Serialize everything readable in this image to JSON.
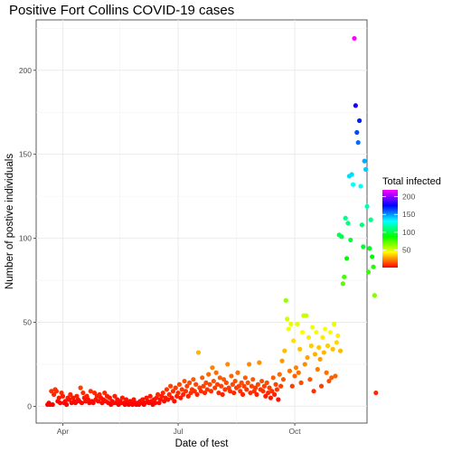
{
  "chart_data": {
    "type": "scatter",
    "title": "Positive Fort Collins COVID-19 cases",
    "xlabel": "Date of test",
    "ylabel": "Number of postive individuals",
    "x_ticks": [
      {
        "label": "Apr",
        "value": "2020-04-01"
      },
      {
        "label": "Jul",
        "value": "2020-07-01"
      },
      {
        "label": "Oct",
        "value": "2020-10-01"
      }
    ],
    "y_ticks": [
      0,
      50,
      100,
      150,
      200
    ],
    "xlim": [
      "2020-03-11",
      "2020-11-27"
    ],
    "ylim": [
      -10,
      230
    ],
    "grid": true,
    "legend": {
      "title": "Total infected",
      "position": "right",
      "ticks": [
        50,
        100,
        150,
        200
      ],
      "range": [
        1,
        219
      ],
      "colors": [
        "#ff0000",
        "#ffff00",
        "#00ff00",
        "#00ffff",
        "#0000ff",
        "#ff00ff"
      ]
    },
    "points": [
      [
        "2020-03-20",
        1
      ],
      [
        "2020-03-21",
        2
      ],
      [
        "2020-03-22",
        1
      ],
      [
        "2020-03-23",
        9
      ],
      [
        "2020-03-24",
        1
      ],
      [
        "2020-03-25",
        7
      ],
      [
        "2020-03-26",
        10
      ],
      [
        "2020-03-27",
        9
      ],
      [
        "2020-03-28",
        3
      ],
      [
        "2020-03-29",
        5
      ],
      [
        "2020-03-30",
        2
      ],
      [
        "2020-03-31",
        8
      ],
      [
        "2020-04-01",
        6
      ],
      [
        "2020-04-02",
        2
      ],
      [
        "2020-04-03",
        3
      ],
      [
        "2020-04-04",
        1
      ],
      [
        "2020-04-05",
        5
      ],
      [
        "2020-04-06",
        4
      ],
      [
        "2020-04-07",
        7
      ],
      [
        "2020-04-08",
        2
      ],
      [
        "2020-04-09",
        5
      ],
      [
        "2020-04-10",
        3
      ],
      [
        "2020-04-11",
        2
      ],
      [
        "2020-04-12",
        6
      ],
      [
        "2020-04-13",
        4
      ],
      [
        "2020-04-14",
        3
      ],
      [
        "2020-04-15",
        11
      ],
      [
        "2020-04-16",
        2
      ],
      [
        "2020-04-17",
        8
      ],
      [
        "2020-04-18",
        5
      ],
      [
        "2020-04-19",
        3
      ],
      [
        "2020-04-20",
        6
      ],
      [
        "2020-04-21",
        4
      ],
      [
        "2020-04-22",
        2
      ],
      [
        "2020-04-23",
        9
      ],
      [
        "2020-04-24",
        3
      ],
      [
        "2020-04-25",
        2
      ],
      [
        "2020-04-26",
        8
      ],
      [
        "2020-04-27",
        4
      ],
      [
        "2020-04-28",
        6
      ],
      [
        "2020-04-29",
        3
      ],
      [
        "2020-04-30",
        7
      ],
      [
        "2020-05-01",
        5
      ],
      [
        "2020-05-02",
        2
      ],
      [
        "2020-05-03",
        4
      ],
      [
        "2020-05-04",
        8
      ],
      [
        "2020-05-05",
        3
      ],
      [
        "2020-05-06",
        6
      ],
      [
        "2020-05-07",
        2
      ],
      [
        "2020-05-08",
        5
      ],
      [
        "2020-05-09",
        1
      ],
      [
        "2020-05-10",
        3
      ],
      [
        "2020-05-11",
        2
      ],
      [
        "2020-05-12",
        6
      ],
      [
        "2020-05-13",
        2
      ],
      [
        "2020-05-14",
        4
      ],
      [
        "2020-05-15",
        1
      ],
      [
        "2020-05-16",
        3
      ],
      [
        "2020-05-17",
        2
      ],
      [
        "2020-05-18",
        5
      ],
      [
        "2020-05-19",
        2
      ],
      [
        "2020-05-20",
        1
      ],
      [
        "2020-05-21",
        4
      ],
      [
        "2020-05-22",
        2
      ],
      [
        "2020-05-23",
        1
      ],
      [
        "2020-05-24",
        3
      ],
      [
        "2020-05-25",
        2
      ],
      [
        "2020-05-26",
        1
      ],
      [
        "2020-05-27",
        4
      ],
      [
        "2020-05-28",
        2
      ],
      [
        "2020-05-29",
        1
      ],
      [
        "2020-05-30",
        2
      ],
      [
        "2020-05-31",
        1
      ],
      [
        "2020-06-01",
        3
      ],
      [
        "2020-06-02",
        2
      ],
      [
        "2020-06-03",
        4
      ],
      [
        "2020-06-04",
        1
      ],
      [
        "2020-06-05",
        2
      ],
      [
        "2020-06-06",
        5
      ],
      [
        "2020-06-07",
        3
      ],
      [
        "2020-06-08",
        2
      ],
      [
        "2020-06-09",
        6
      ],
      [
        "2020-06-10",
        3
      ],
      [
        "2020-06-11",
        1
      ],
      [
        "2020-06-12",
        4
      ],
      [
        "2020-06-13",
        2
      ],
      [
        "2020-06-14",
        5
      ],
      [
        "2020-06-15",
        7
      ],
      [
        "2020-06-16",
        2
      ],
      [
        "2020-06-17",
        4
      ],
      [
        "2020-06-18",
        6
      ],
      [
        "2020-06-19",
        8
      ],
      [
        "2020-06-20",
        3
      ],
      [
        "2020-06-21",
        5
      ],
      [
        "2020-06-22",
        10
      ],
      [
        "2020-06-23",
        4
      ],
      [
        "2020-06-24",
        7
      ],
      [
        "2020-06-25",
        12
      ],
      [
        "2020-06-26",
        5
      ],
      [
        "2020-06-27",
        9
      ],
      [
        "2020-06-28",
        3
      ],
      [
        "2020-06-29",
        11
      ],
      [
        "2020-06-30",
        6
      ],
      [
        "2020-07-01",
        8
      ],
      [
        "2020-07-02",
        13
      ],
      [
        "2020-07-03",
        5
      ],
      [
        "2020-07-04",
        10
      ],
      [
        "2020-07-05",
        7
      ],
      [
        "2020-07-06",
        15
      ],
      [
        "2020-07-07",
        9
      ],
      [
        "2020-07-08",
        12
      ],
      [
        "2020-07-09",
        6
      ],
      [
        "2020-07-10",
        14
      ],
      [
        "2020-07-11",
        8
      ],
      [
        "2020-07-12",
        10
      ],
      [
        "2020-07-13",
        16
      ],
      [
        "2020-07-14",
        9
      ],
      [
        "2020-07-15",
        13
      ],
      [
        "2020-07-16",
        7
      ],
      [
        "2020-07-17",
        32
      ],
      [
        "2020-07-18",
        11
      ],
      [
        "2020-07-19",
        9
      ],
      [
        "2020-07-20",
        17
      ],
      [
        "2020-07-21",
        12
      ],
      [
        "2020-07-22",
        8
      ],
      [
        "2020-07-23",
        14
      ],
      [
        "2020-07-24",
        10
      ],
      [
        "2020-07-25",
        19
      ],
      [
        "2020-07-26",
        13
      ],
      [
        "2020-07-27",
        9
      ],
      [
        "2020-07-28",
        23
      ],
      [
        "2020-07-29",
        15
      ],
      [
        "2020-07-30",
        11
      ],
      [
        "2020-07-31",
        20
      ],
      [
        "2020-08-01",
        13
      ],
      [
        "2020-08-02",
        8
      ],
      [
        "2020-08-03",
        17
      ],
      [
        "2020-08-04",
        12
      ],
      [
        "2020-08-05",
        7
      ],
      [
        "2020-08-06",
        16
      ],
      [
        "2020-08-07",
        10
      ],
      [
        "2020-08-08",
        14
      ],
      [
        "2020-08-09",
        25
      ],
      [
        "2020-08-10",
        11
      ],
      [
        "2020-08-11",
        9
      ],
      [
        "2020-08-12",
        18
      ],
      [
        "2020-08-13",
        13
      ],
      [
        "2020-08-14",
        8
      ],
      [
        "2020-08-15",
        15
      ],
      [
        "2020-08-16",
        11
      ],
      [
        "2020-08-17",
        20
      ],
      [
        "2020-08-18",
        12
      ],
      [
        "2020-08-19",
        9
      ],
      [
        "2020-08-20",
        14
      ],
      [
        "2020-08-21",
        7
      ],
      [
        "2020-08-22",
        12
      ],
      [
        "2020-08-23",
        17
      ],
      [
        "2020-08-24",
        10
      ],
      [
        "2020-08-25",
        14
      ],
      [
        "2020-08-26",
        25
      ],
      [
        "2020-08-27",
        8
      ],
      [
        "2020-08-28",
        12
      ],
      [
        "2020-08-29",
        16
      ],
      [
        "2020-08-30",
        9
      ],
      [
        "2020-08-31",
        11
      ],
      [
        "2020-09-01",
        7
      ],
      [
        "2020-09-02",
        13
      ],
      [
        "2020-09-03",
        26
      ],
      [
        "2020-09-04",
        10
      ],
      [
        "2020-09-05",
        15
      ],
      [
        "2020-09-06",
        9
      ],
      [
        "2020-09-07",
        12
      ],
      [
        "2020-09-08",
        6
      ],
      [
        "2020-09-09",
        14
      ],
      [
        "2020-09-10",
        8
      ],
      [
        "2020-09-11",
        11
      ],
      [
        "2020-09-12",
        5
      ],
      [
        "2020-09-13",
        9
      ],
      [
        "2020-09-14",
        17
      ],
      [
        "2020-09-15",
        7
      ],
      [
        "2020-09-16",
        13
      ],
      [
        "2020-09-17",
        10
      ],
      [
        "2020-09-18",
        4
      ],
      [
        "2020-09-19",
        19
      ],
      [
        "2020-09-20",
        12
      ],
      [
        "2020-09-21",
        27
      ],
      [
        "2020-09-22",
        16
      ],
      [
        "2020-09-23",
        33
      ],
      [
        "2020-09-24",
        63
      ],
      [
        "2020-09-25",
        52
      ],
      [
        "2020-09-26",
        46
      ],
      [
        "2020-09-27",
        21
      ],
      [
        "2020-09-28",
        49
      ],
      [
        "2020-09-29",
        12
      ],
      [
        "2020-09-30",
        39
      ],
      [
        "2020-10-01",
        18
      ],
      [
        "2020-10-02",
        23
      ],
      [
        "2020-10-03",
        49
      ],
      [
        "2020-10-04",
        20
      ],
      [
        "2020-10-05",
        34
      ],
      [
        "2020-10-06",
        14
      ],
      [
        "2020-10-07",
        44
      ],
      [
        "2020-10-08",
        54
      ],
      [
        "2020-10-09",
        25
      ],
      [
        "2020-10-10",
        54
      ],
      [
        "2020-10-11",
        29
      ],
      [
        "2020-10-12",
        41
      ],
      [
        "2020-10-13",
        16
      ],
      [
        "2020-10-14",
        36
      ],
      [
        "2020-10-15",
        47
      ],
      [
        "2020-10-16",
        9
      ],
      [
        "2020-10-17",
        31
      ],
      [
        "2020-10-18",
        44
      ],
      [
        "2020-10-19",
        22
      ],
      [
        "2020-10-20",
        35
      ],
      [
        "2020-10-21",
        28
      ],
      [
        "2020-10-22",
        12
      ],
      [
        "2020-10-23",
        41
      ],
      [
        "2020-10-24",
        32
      ],
      [
        "2020-10-25",
        46
      ],
      [
        "2020-10-26",
        20
      ],
      [
        "2020-10-27",
        36
      ],
      [
        "2020-10-28",
        15
      ],
      [
        "2020-10-29",
        44
      ],
      [
        "2020-10-30",
        17
      ],
      [
        "2020-10-31",
        34
      ],
      [
        "2020-11-01",
        49
      ],
      [
        "2020-11-02",
        18
      ],
      [
        "2020-11-03",
        38
      ],
      [
        "2020-11-04",
        42
      ],
      [
        "2020-11-05",
        102
      ],
      [
        "2020-11-06",
        33
      ],
      [
        "2020-11-07",
        101
      ],
      [
        "2020-11-08",
        73
      ],
      [
        "2020-11-09",
        77
      ],
      [
        "2020-11-10",
        112
      ],
      [
        "2020-11-11",
        88
      ],
      [
        "2020-11-12",
        109
      ],
      [
        "2020-11-13",
        137
      ],
      [
        "2020-11-14",
        99
      ],
      [
        "2020-11-15",
        138
      ],
      [
        "2020-11-16",
        132
      ],
      [
        "2020-11-17",
        219
      ],
      [
        "2020-11-18",
        179
      ],
      [
        "2020-11-19",
        163
      ],
      [
        "2020-11-20",
        157
      ],
      [
        "2020-11-21",
        170
      ],
      [
        "2020-11-22",
        131
      ],
      [
        "2020-11-23",
        108
      ],
      [
        "2020-11-24",
        95
      ],
      [
        "2020-11-25",
        146
      ],
      [
        "2020-11-26",
        141
      ],
      [
        "2020-11-27",
        119
      ],
      [
        "2020-11-28",
        80
      ],
      [
        "2020-11-29",
        94
      ],
      [
        "2020-11-30",
        111
      ],
      [
        "2020-12-01",
        89
      ],
      [
        "2020-12-02",
        83
      ],
      [
        "2020-12-03",
        66
      ],
      [
        "2020-12-04",
        8
      ]
    ]
  }
}
